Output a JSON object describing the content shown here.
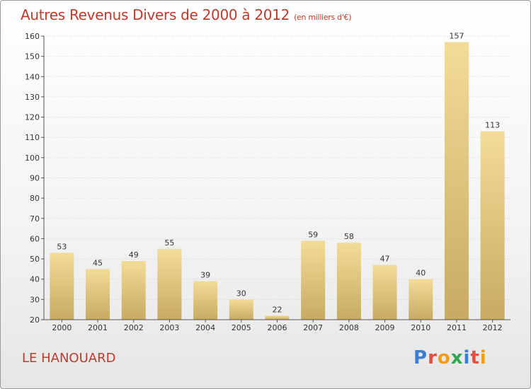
{
  "title": "Autres Revenus Divers de 2000 à 2012",
  "unit": "(en milliers d'€)",
  "commune": "LE HANOUARD",
  "logo": [
    "P",
    "r",
    "o",
    "x",
    "i",
    "t",
    "i"
  ],
  "logo_colors": [
    "#3a7fd5",
    "#e74c3c",
    "#f39c12",
    "#2ea84a",
    "#3a7fd5",
    "#e74c3c",
    "#f39c12"
  ],
  "chart_data": {
    "type": "bar",
    "categories": [
      "2000",
      "2001",
      "2002",
      "2003",
      "2004",
      "2005",
      "2006",
      "2007",
      "2008",
      "2009",
      "2010",
      "2011",
      "2012"
    ],
    "values": [
      53,
      45,
      49,
      55,
      39,
      30,
      22,
      59,
      58,
      47,
      40,
      157,
      113
    ],
    "ylim": [
      20,
      160
    ],
    "yticks": [
      20,
      30,
      40,
      50,
      60,
      70,
      80,
      90,
      100,
      110,
      120,
      130,
      140,
      150,
      160
    ],
    "grid": true,
    "bar_color_top": "#f3dc97",
    "bar_color_bottom": "#c8aa62",
    "title_color": "#c0392b"
  }
}
